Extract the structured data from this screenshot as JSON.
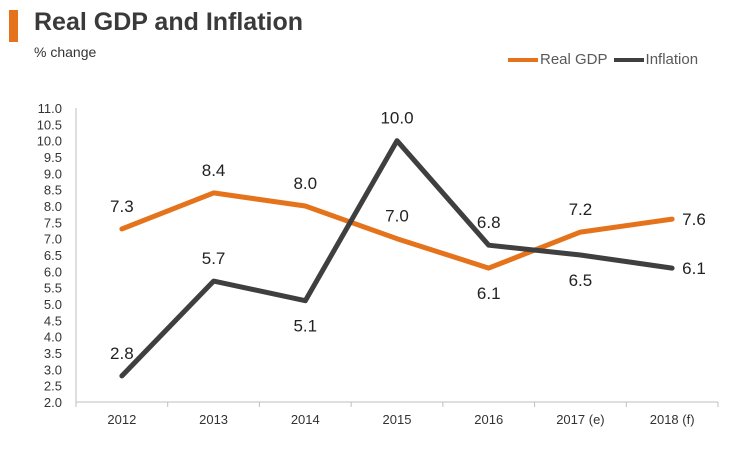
{
  "header": {
    "title": "Real GDP and Inflation",
    "subtitle": "% change"
  },
  "colors": {
    "accent": "#e5731c",
    "real_gdp": "#e5731c",
    "inflation": "#3f3f3f",
    "axis": "#bfbfbf"
  },
  "chart_data": {
    "type": "line",
    "title": "Real GDP and Inflation",
    "ylabel": "% change",
    "xlabel": "",
    "categories": [
      "2012",
      "2013",
      "2014",
      "2015",
      "2016",
      "2017 (e)",
      "2018 (f)"
    ],
    "ylim": [
      2.0,
      11.0
    ],
    "yticks": [
      "2.0",
      "2.5",
      "3.0",
      "3.5",
      "4.0",
      "4.5",
      "5.0",
      "5.5",
      "6.0",
      "6.5",
      "7.0",
      "7.5",
      "8.0",
      "8.5",
      "9.0",
      "9.5",
      "10.0",
      "10.5",
      "11.0"
    ],
    "legend_position": "top-right",
    "grid": false,
    "series": [
      {
        "name": "Real GDP",
        "values": [
          7.3,
          8.4,
          8.0,
          7.0,
          6.1,
          7.2,
          7.6
        ],
        "labels": [
          "7.3",
          "8.4",
          "8.0",
          "7.0",
          "6.1",
          "7.2",
          "7.6"
        ]
      },
      {
        "name": "Inflation",
        "values": [
          2.8,
          5.7,
          5.1,
          10.0,
          6.8,
          6.5,
          6.1
        ],
        "labels": [
          "2.8",
          "5.7",
          "5.1",
          "10.0",
          "6.8",
          "6.5",
          "6.1"
        ]
      }
    ]
  }
}
